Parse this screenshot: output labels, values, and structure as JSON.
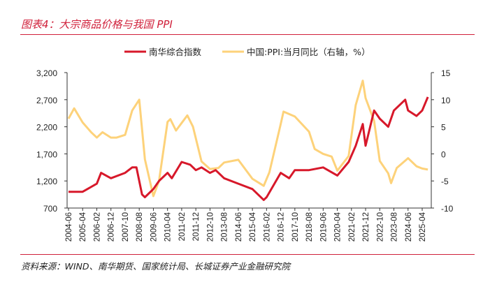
{
  "title": "图表4：大宗商品价格与我国 PPI",
  "source": "资料来源：WIND、南华期货、国家统计局、长城证券产业金融研究院",
  "chart_data": {
    "type": "line",
    "legend_position": "top",
    "grid": false,
    "x_tick_labels": [
      "2004-06",
      "2005-04",
      "2006-02",
      "2006-12",
      "2007-10",
      "2008-08",
      "2009-06",
      "2010-04",
      "2011-02",
      "2011-12",
      "2012-10",
      "2013-08",
      "2014-06",
      "2015-04",
      "2016-02",
      "2016-12",
      "2017-10",
      "2018-08",
      "2019-06",
      "2020-04",
      "2021-02",
      "2021-12",
      "2022-10",
      "2023-08",
      "2024-06",
      "2025-04"
    ],
    "y_left": {
      "range": [
        700,
        3200
      ],
      "ticks": [
        "3,200",
        "2,700",
        "2,200",
        "1,700",
        "1,200",
        "700"
      ]
    },
    "y_right": {
      "range": [
        -10,
        15
      ],
      "ticks": [
        "15",
        "10",
        "5",
        "0",
        "-5",
        "-10"
      ]
    },
    "series": [
      {
        "name": "南华综合指数",
        "axis": "left",
        "color": "#d7182a",
        "points": [
          [
            "2004-06",
            1000
          ],
          [
            "2005-04",
            1000
          ],
          [
            "2006-02",
            1150
          ],
          [
            "2006-05",
            1350
          ],
          [
            "2006-12",
            1250
          ],
          [
            "2007-10",
            1350
          ],
          [
            "2008-03",
            1450
          ],
          [
            "2008-06",
            1450
          ],
          [
            "2008-10",
            950
          ],
          [
            "2008-12",
            900
          ],
          [
            "2009-06",
            1050
          ],
          [
            "2009-10",
            1200
          ],
          [
            "2010-04",
            1350
          ],
          [
            "2010-07",
            1250
          ],
          [
            "2011-02",
            1550
          ],
          [
            "2011-08",
            1500
          ],
          [
            "2011-12",
            1400
          ],
          [
            "2012-04",
            1450
          ],
          [
            "2012-10",
            1350
          ],
          [
            "2013-02",
            1400
          ],
          [
            "2013-08",
            1250
          ],
          [
            "2014-06",
            1150
          ],
          [
            "2015-04",
            1050
          ],
          [
            "2015-12",
            850
          ],
          [
            "2016-02",
            900
          ],
          [
            "2016-12",
            1350
          ],
          [
            "2017-06",
            1250
          ],
          [
            "2017-10",
            1400
          ],
          [
            "2018-08",
            1400
          ],
          [
            "2019-06",
            1450
          ],
          [
            "2020-04",
            1300
          ],
          [
            "2020-12",
            1550
          ],
          [
            "2021-05",
            1850
          ],
          [
            "2021-10",
            2250
          ],
          [
            "2021-12",
            1850
          ],
          [
            "2022-06",
            2500
          ],
          [
            "2022-10",
            2350
          ],
          [
            "2023-04",
            2200
          ],
          [
            "2023-08",
            2500
          ],
          [
            "2024-04",
            2700
          ],
          [
            "2024-06",
            2500
          ],
          [
            "2024-12",
            2400
          ],
          [
            "2025-04",
            2500
          ],
          [
            "2025-08",
            2750
          ]
        ]
      },
      {
        "name": "中国:PPI:当月同比（右轴，%）",
        "axis": "right",
        "color": "#fdd27a",
        "points": [
          [
            "2004-06",
            6.5
          ],
          [
            "2004-10",
            8.4
          ],
          [
            "2005-04",
            5.8
          ],
          [
            "2005-10",
            4
          ],
          [
            "2006-02",
            3
          ],
          [
            "2006-06",
            4
          ],
          [
            "2006-12",
            3
          ],
          [
            "2007-04",
            3
          ],
          [
            "2007-10",
            3.5
          ],
          [
            "2008-03",
            8
          ],
          [
            "2008-08",
            10
          ],
          [
            "2008-12",
            -1
          ],
          [
            "2009-06",
            -7.8
          ],
          [
            "2009-10",
            -5
          ],
          [
            "2010-04",
            5.9
          ],
          [
            "2010-06",
            6.4
          ],
          [
            "2010-10",
            4.3
          ],
          [
            "2011-06",
            7.1
          ],
          [
            "2011-10",
            5
          ],
          [
            "2012-04",
            -1.4
          ],
          [
            "2012-10",
            -2.8
          ],
          [
            "2013-04",
            -2.6
          ],
          [
            "2013-08",
            -1.6
          ],
          [
            "2014-06",
            -1.1
          ],
          [
            "2015-04",
            -4.6
          ],
          [
            "2015-12",
            -5.9
          ],
          [
            "2016-04",
            -3.4
          ],
          [
            "2016-12",
            5.5
          ],
          [
            "2017-02",
            7.8
          ],
          [
            "2017-10",
            6.9
          ],
          [
            "2018-08",
            4.1
          ],
          [
            "2018-12",
            0.9
          ],
          [
            "2019-06",
            0
          ],
          [
            "2019-12",
            -0.5
          ],
          [
            "2020-04",
            -3.1
          ],
          [
            "2020-12",
            -0.4
          ],
          [
            "2021-05",
            9
          ],
          [
            "2021-10",
            13.5
          ],
          [
            "2021-12",
            10.3
          ],
          [
            "2022-06",
            6.1
          ],
          [
            "2022-10",
            -1.3
          ],
          [
            "2023-04",
            -3.6
          ],
          [
            "2023-06",
            -5.4
          ],
          [
            "2023-10",
            -2.6
          ],
          [
            "2024-06",
            -0.8
          ],
          [
            "2024-12",
            -2.3
          ],
          [
            "2025-04",
            -2.7
          ],
          [
            "2025-08",
            -2.9
          ]
        ]
      }
    ]
  }
}
